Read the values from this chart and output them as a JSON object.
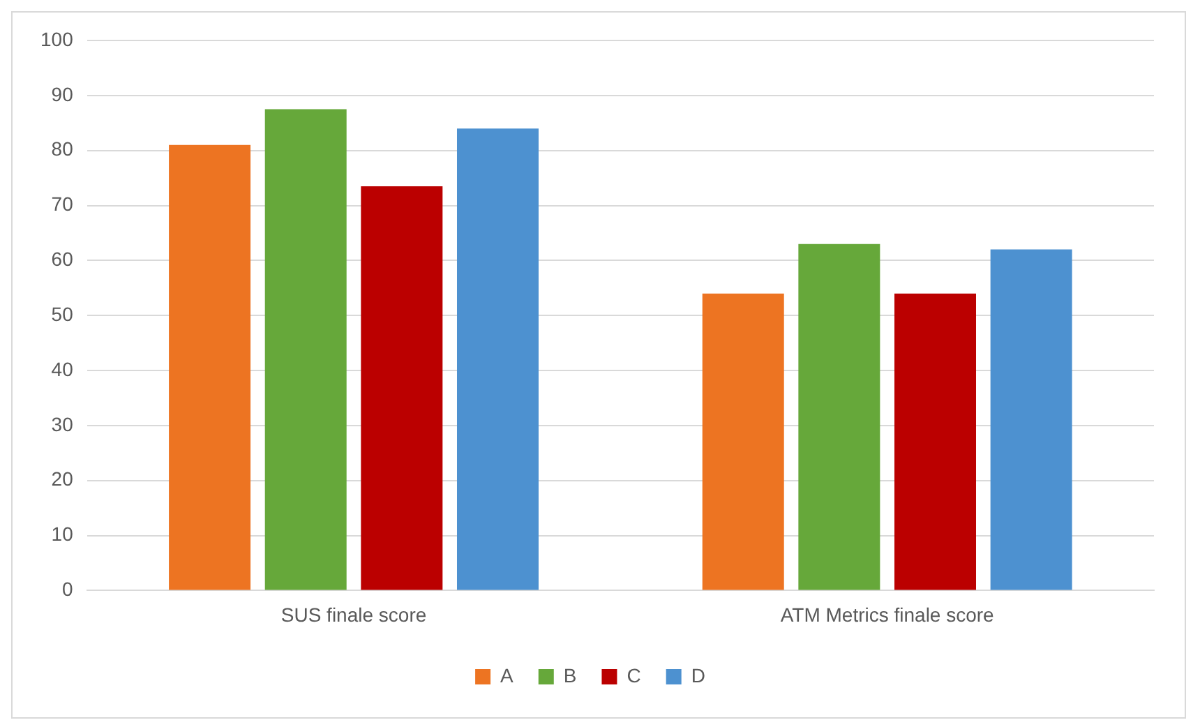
{
  "chart_data": {
    "type": "bar",
    "categories": [
      "SUS finale score",
      "ATM Metrics finale score"
    ],
    "series": [
      {
        "name": "A",
        "color": "#ed7422",
        "values": [
          81,
          54
        ]
      },
      {
        "name": "B",
        "color": "#66a83a",
        "values": [
          87.5,
          63
        ]
      },
      {
        "name": "C",
        "color": "#bb0000",
        "values": [
          73.5,
          54
        ]
      },
      {
        "name": "D",
        "color": "#4d91d0",
        "values": [
          84,
          62
        ]
      }
    ],
    "ylim": [
      0,
      100
    ],
    "yticks": [
      0,
      10,
      20,
      30,
      40,
      50,
      60,
      70,
      80,
      90,
      100
    ],
    "grid": "y",
    "legend": "bottom"
  }
}
